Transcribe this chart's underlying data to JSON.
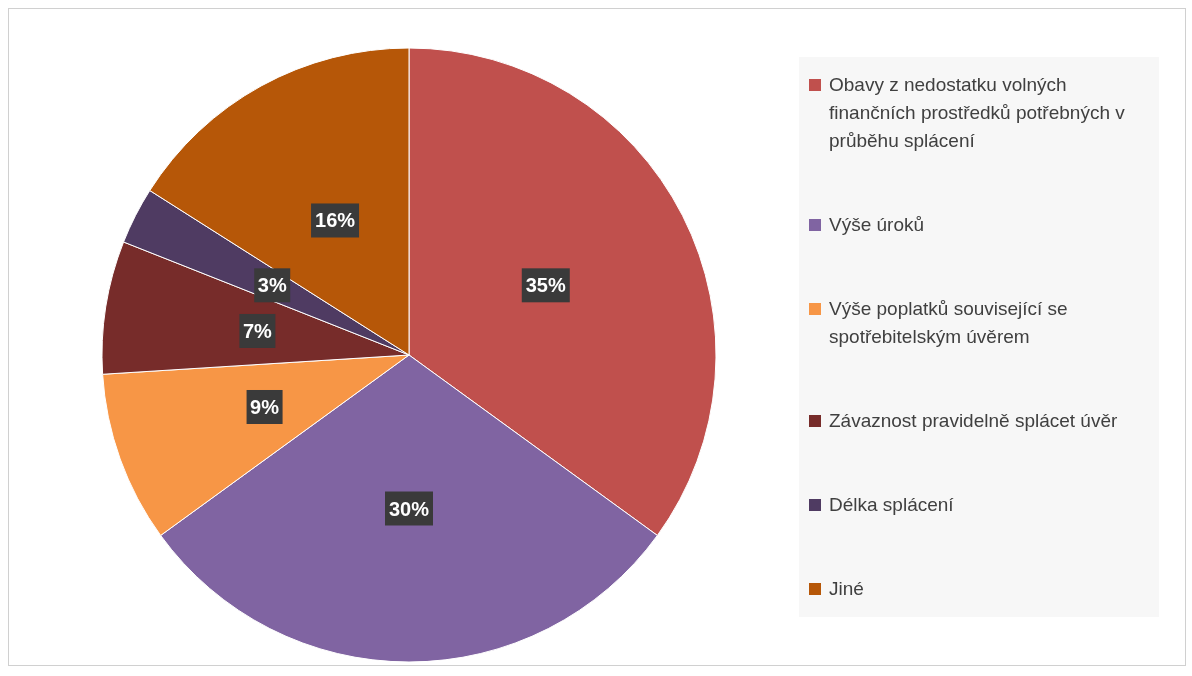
{
  "chart_data": {
    "type": "pie",
    "categories": [
      "Obavy z nedostatku volných finančních prostředků potřebných v průběhu splácení",
      "Výše úroků",
      "Výše poplatků související se spotřebitelským úvěrem",
      "Závaznost pravidelně splácet úvěr",
      "Délka splácení",
      "Jiné"
    ],
    "values": [
      35,
      30,
      9,
      7,
      3,
      16
    ],
    "colors": [
      "#c0504d",
      "#8064a2",
      "#f79646",
      "#772c2a",
      "#4f3b62",
      "#b65708"
    ],
    "value_labels": [
      "35%",
      "30%",
      "9%",
      "7%",
      "3%",
      "16%"
    ],
    "legend": "right"
  }
}
